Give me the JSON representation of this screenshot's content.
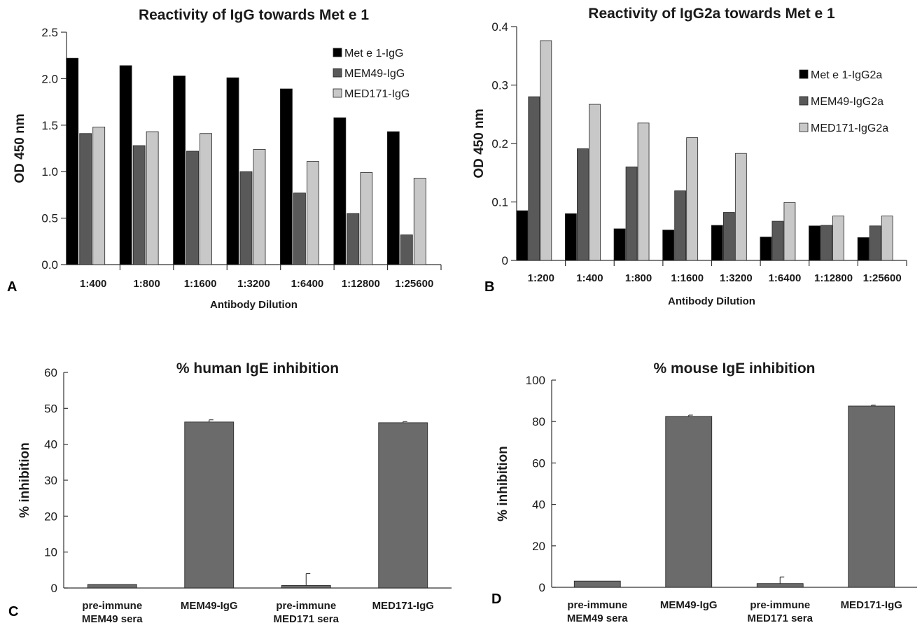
{
  "chart_data": [
    {
      "panel": "A",
      "type": "bar",
      "title": "Reactivity of IgG towards Met e 1",
      "xlabel": "Antibody Dilution",
      "ylabel": "OD 450 nm",
      "ylim": [
        0,
        2.5
      ],
      "yticks": [
        "0.0",
        "0.5",
        "1.0",
        "1.5",
        "2.0",
        "2.5"
      ],
      "legend_position": "top-right",
      "categories": [
        "1:400",
        "1:800",
        "1:1600",
        "1:3200",
        "1:6400",
        "1:12800",
        "1:25600"
      ],
      "series": [
        {
          "name": "Met e 1-IgG",
          "color": "#000000",
          "values": [
            2.22,
            2.14,
            2.03,
            2.01,
            1.89,
            1.58,
            1.43
          ]
        },
        {
          "name": "MEM49-IgG",
          "color": "#595959",
          "values": [
            1.41,
            1.28,
            1.22,
            1.0,
            0.77,
            0.55,
            0.32
          ]
        },
        {
          "name": "MED171-IgG",
          "color": "#c8c8c8",
          "values": [
            1.48,
            1.43,
            1.41,
            1.24,
            1.11,
            0.99,
            0.93
          ]
        }
      ]
    },
    {
      "panel": "B",
      "type": "bar",
      "title": "Reactivity of IgG2a towards Met e 1",
      "xlabel": "Antibody Dilution",
      "ylabel": "OD 450 nm",
      "ylim": [
        0,
        0.4
      ],
      "yticks": [
        "0",
        "0.1",
        "0.2",
        "0.3",
        "0.4"
      ],
      "legend_position": "right",
      "categories": [
        "1:200",
        "1:400",
        "1:800",
        "1:1600",
        "1:3200",
        "1:6400",
        "1:12800",
        "1:25600"
      ],
      "series": [
        {
          "name": "Met e 1-IgG2a",
          "color": "#000000",
          "values": [
            0.085,
            0.08,
            0.054,
            0.052,
            0.06,
            0.04,
            0.059,
            0.039
          ]
        },
        {
          "name": "MEM49-IgG2a",
          "color": "#595959",
          "values": [
            0.28,
            0.191,
            0.16,
            0.119,
            0.082,
            0.067,
            0.06,
            0.059
          ]
        },
        {
          "name": "MED171-IgG2a",
          "color": "#c8c8c8",
          "values": [
            0.376,
            0.267,
            0.235,
            0.21,
            0.183,
            0.099,
            0.076,
            0.076
          ]
        }
      ]
    },
    {
      "panel": "C",
      "type": "bar",
      "title": "% human IgE inhibition",
      "xlabel": "",
      "ylabel": "% inhibition",
      "ylim": [
        0,
        60
      ],
      "yticks": [
        "0",
        "10",
        "20",
        "30",
        "40",
        "50",
        "60"
      ],
      "categories": [
        [
          "pre-immune",
          "MEM49 sera"
        ],
        [
          "MEM49-IgG"
        ],
        [
          "pre-immune",
          "MED171 sera"
        ],
        [
          "MED171-IgG"
        ]
      ],
      "series": [
        {
          "color": "#6b6b6b",
          "values": [
            1.0,
            46.2,
            0.7,
            46.0
          ],
          "errors": [
            0,
            0.6,
            3.3,
            0.3
          ]
        }
      ]
    },
    {
      "panel": "D",
      "type": "bar",
      "title": "% mouse IgE inhibition",
      "xlabel": "",
      "ylabel": "% inhibition",
      "ylim": [
        0,
        100
      ],
      "yticks": [
        "0",
        "20",
        "40",
        "60",
        "80",
        "100"
      ],
      "categories": [
        [
          "pre-immune",
          "MEM49 sera"
        ],
        [
          "MEM49-IgG"
        ],
        [
          "pre-immune",
          "MED171 sera"
        ],
        [
          "MED171-IgG"
        ]
      ],
      "series": [
        {
          "color": "#6b6b6b",
          "values": [
            3.0,
            82.5,
            1.8,
            87.5
          ],
          "errors": [
            0,
            0.6,
            3.2,
            0.4
          ]
        }
      ]
    }
  ]
}
